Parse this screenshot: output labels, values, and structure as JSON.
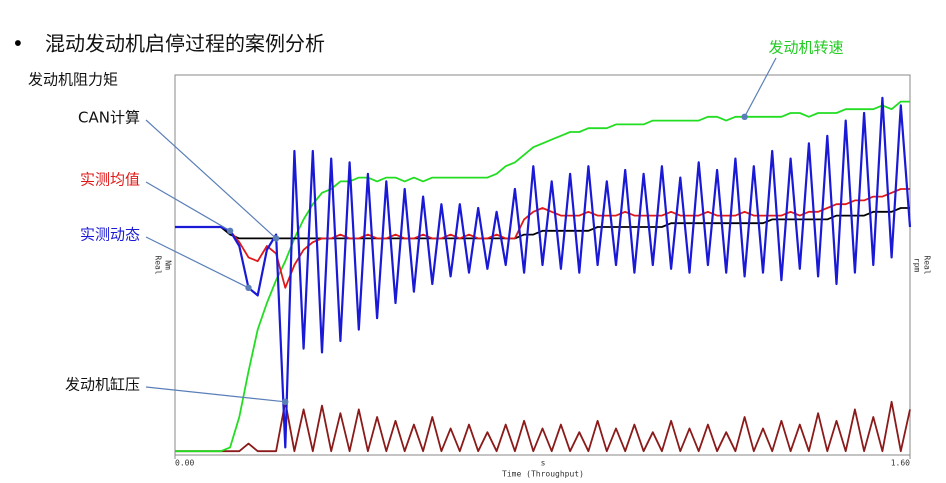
{
  "title": "混动发动机启停过程的案例分析",
  "chart_data": {
    "type": "line",
    "annotation": "发动机阻力矩",
    "xlabel": "Time (Throughput)",
    "xunit": "s",
    "ylabel_lines": [
      "Nm",
      "Real"
    ],
    "y2label_lines": [
      "Real",
      "rpm"
    ],
    "xlim": [
      0,
      1.6
    ],
    "xticks": [
      {
        "value": 0,
        "label": "0.00"
      },
      {
        "value": 1.6,
        "label": "1.60"
      }
    ],
    "ylim": [
      0,
      100
    ],
    "y2lim": [
      0,
      100
    ],
    "x": [
      0,
      0.02,
      0.04,
      0.06,
      0.08,
      0.1,
      0.12,
      0.14,
      0.16,
      0.18,
      0.2,
      0.22,
      0.24,
      0.26,
      0.28,
      0.3,
      0.32,
      0.34,
      0.36,
      0.38,
      0.4,
      0.42,
      0.44,
      0.46,
      0.48,
      0.5,
      0.52,
      0.54,
      0.56,
      0.58,
      0.6,
      0.62,
      0.64,
      0.66,
      0.68,
      0.7,
      0.72,
      0.74,
      0.76,
      0.78,
      0.8,
      0.82,
      0.84,
      0.86,
      0.88,
      0.9,
      0.92,
      0.94,
      0.96,
      0.98,
      1,
      1.02,
      1.04,
      1.06,
      1.08,
      1.1,
      1.12,
      1.14,
      1.16,
      1.18,
      1.2,
      1.22,
      1.24,
      1.26,
      1.28,
      1.3,
      1.32,
      1.34,
      1.36,
      1.38,
      1.4,
      1.42,
      1.44,
      1.46,
      1.48,
      1.5,
      1.52,
      1.54,
      1.56,
      1.58,
      1.6
    ],
    "series": [
      {
        "name": "发动机缸压",
        "color": "#8b1a1a",
        "values": [
          1,
          1,
          1,
          1,
          1,
          1,
          1,
          1,
          3,
          1,
          1,
          1,
          14,
          1,
          12,
          1,
          13,
          1,
          11,
          1,
          12,
          1,
          10,
          1,
          9,
          1,
          8,
          1,
          10,
          1,
          7,
          1,
          8,
          1,
          6,
          1,
          8,
          1,
          9,
          1,
          7,
          1,
          8,
          1,
          6,
          1,
          9,
          1,
          7,
          1,
          8,
          1,
          6,
          1,
          9,
          1,
          7,
          1,
          8,
          1,
          6,
          1,
          10,
          1,
          7,
          1,
          9,
          1,
          8,
          1,
          11,
          1,
          9,
          1,
          12,
          1,
          10,
          1,
          14,
          1,
          12
        ]
      },
      {
        "name": "发动机转速",
        "color": "#22dd22",
        "axis": "y2",
        "values": [
          1,
          1,
          1,
          1,
          1,
          1,
          2,
          10,
          22,
          33,
          40,
          46,
          51,
          57,
          62,
          66,
          69,
          70,
          72,
          72,
          73,
          73,
          72,
          73,
          73,
          72,
          73,
          72,
          73,
          73,
          73,
          73,
          73,
          73,
          73,
          74,
          76,
          77,
          79,
          81,
          82,
          83,
          84,
          85,
          85,
          86,
          86,
          86,
          87,
          87,
          87,
          87,
          88,
          88,
          88,
          88,
          88,
          88,
          89,
          89,
          88,
          89,
          89,
          89,
          89,
          89,
          89,
          90,
          90,
          89,
          90,
          90,
          90,
          91,
          91,
          91,
          91,
          92,
          91,
          93,
          93
        ]
      },
      {
        "name": "CAN计算",
        "color": "#000000",
        "values": [
          60,
          60,
          60,
          60,
          60,
          60,
          58,
          57,
          57,
          57,
          57,
          57,
          57,
          57,
          57,
          57,
          57,
          57,
          57,
          57,
          57,
          57,
          57,
          57,
          57,
          57,
          57,
          57,
          57,
          57,
          57,
          57,
          57,
          57,
          57,
          57,
          57,
          57,
          58,
          58,
          59,
          59,
          59,
          59,
          59,
          59,
          60,
          60,
          60,
          60,
          60,
          60,
          60,
          60,
          61,
          61,
          61,
          61,
          61,
          61,
          61,
          61,
          61,
          61,
          61,
          62,
          62,
          62,
          62,
          62,
          62,
          62,
          63,
          63,
          63,
          63,
          64,
          64,
          64,
          65,
          65
        ]
      },
      {
        "name": "实测均值",
        "color": "#e01818",
        "values": [
          60,
          60,
          60,
          60,
          60,
          60,
          59,
          56,
          52,
          51,
          55,
          53,
          44,
          50,
          54,
          56,
          57,
          57,
          58,
          57,
          57,
          58,
          57,
          57,
          58,
          57,
          57,
          58,
          57,
          57,
          58,
          57,
          58,
          57,
          57,
          58,
          57,
          57,
          62,
          64,
          65,
          64,
          63,
          63,
          63,
          64,
          63,
          63,
          63,
          64,
          63,
          63,
          63,
          63,
          64,
          63,
          63,
          63,
          64,
          63,
          63,
          63,
          64,
          63,
          63,
          63,
          63,
          64,
          63,
          64,
          64,
          65,
          66,
          66,
          67,
          67,
          68,
          68,
          69,
          70,
          70
        ]
      },
      {
        "name": "实测动态",
        "color": "#1a1ad6",
        "values": [
          60,
          60,
          60,
          60,
          60,
          60,
          59,
          55,
          44,
          42,
          54,
          58,
          2,
          80,
          28,
          80,
          27,
          78,
          30,
          77,
          33,
          74,
          36,
          72,
          40,
          70,
          43,
          68,
          45,
          66,
          47,
          66,
          48,
          65,
          49,
          64,
          50,
          70,
          48,
          76,
          50,
          72,
          49,
          74,
          48,
          76,
          50,
          72,
          50,
          75,
          48,
          74,
          50,
          76,
          49,
          73,
          48,
          77,
          50,
          75,
          48,
          78,
          47,
          76,
          48,
          80,
          46,
          78,
          49,
          82,
          47,
          84,
          45,
          88,
          48,
          90,
          50,
          94,
          52,
          92,
          60
        ]
      }
    ]
  }
}
